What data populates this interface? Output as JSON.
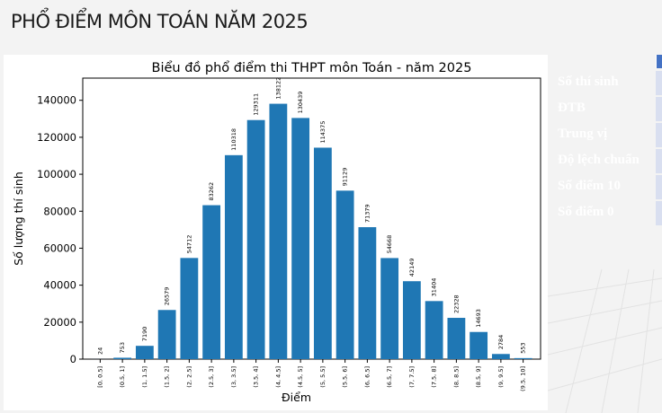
{
  "slide": {
    "title": "PHỔ ĐIỂM MÔN TOÁN NĂM 2025"
  },
  "stats_table": {
    "rows": [
      "Số thí sinh",
      "ĐTB",
      "Trung vị",
      "Độ lệch chuẩn",
      "Số điểm 10",
      "Số điểm 0"
    ]
  },
  "chart_data": {
    "type": "bar",
    "title": "Biểu đồ phổ điểm thi THPT môn Toán - năm 2025",
    "xlabel": "Điểm",
    "ylabel": "Số lượng thí sinh",
    "categories": [
      "[0, 0.5]",
      "(0.5, 1]",
      "(1, 1.5]",
      "(1.5, 2]",
      "(2, 2.5]",
      "(2.5, 3]",
      "(3, 3.5]",
      "(3.5, 4]",
      "(4, 4.5]",
      "(4.5, 5]",
      "(5, 5.5]",
      "(5.5, 6]",
      "(6, 6.5]",
      "(6.5, 7]",
      "(7, 7.5]",
      "(7.5, 8]",
      "(8, 8.5]",
      "(8.5, 9]",
      "(9, 9.5]",
      "(9.5, 10]"
    ],
    "values": [
      24,
      753,
      7190,
      26579,
      54712,
      83262,
      110318,
      129311,
      138122,
      130439,
      114375,
      91129,
      71379,
      54668,
      42149,
      31404,
      22328,
      14693,
      2784,
      553
    ],
    "yticks": [
      0,
      20000,
      40000,
      60000,
      80000,
      100000,
      120000,
      140000
    ],
    "ylim": [
      0,
      152000
    ],
    "bar_color": "#1f77b4",
    "grid": false
  }
}
